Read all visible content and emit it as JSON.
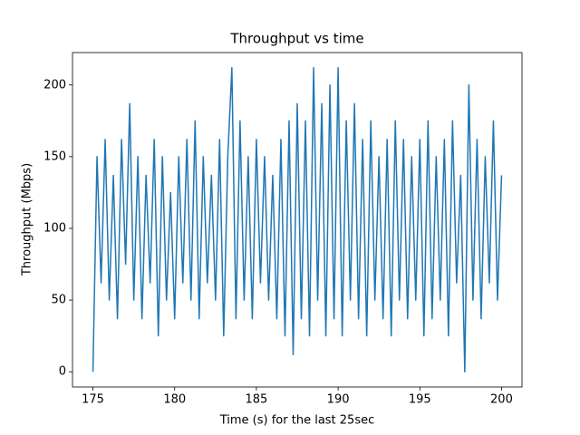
{
  "chart_data": {
    "type": "line",
    "title": "Throughput vs time",
    "x_label": "Time (s) for the last 25sec",
    "y_label": "Throughput (Mbps)",
    "xlim": [
      173.75,
      201.25
    ],
    "ylim": [
      -10.6,
      222.6
    ],
    "xticks": [
      175,
      180,
      185,
      190,
      195,
      200
    ],
    "yticks": [
      0,
      50,
      100,
      150,
      200
    ],
    "grid": false,
    "x": [
      175,
      175.25,
      175.5,
      175.75,
      176,
      176.25,
      176.5,
      176.75,
      177,
      177.25,
      177.5,
      177.75,
      178,
      178.25,
      178.5,
      178.75,
      179,
      179.25,
      179.5,
      179.75,
      180,
      180.25,
      180.5,
      180.75,
      181,
      181.25,
      181.5,
      181.75,
      182,
      182.25,
      182.5,
      182.75,
      183,
      183.25,
      183.5,
      183.75,
      184,
      184.25,
      184.5,
      184.75,
      185,
      185.25,
      185.5,
      185.75,
      186,
      186.25,
      186.5,
      186.75,
      187,
      187.25,
      187.5,
      187.75,
      188,
      188.25,
      188.5,
      188.75,
      189,
      189.25,
      189.5,
      189.75,
      190,
      190.25,
      190.5,
      190.75,
      191,
      191.25,
      191.5,
      191.75,
      192,
      192.25,
      192.5,
      192.75,
      193,
      193.25,
      193.5,
      193.75,
      194,
      194.25,
      194.5,
      194.75,
      195,
      195.25,
      195.5,
      195.75,
      196,
      196.25,
      196.5,
      196.75,
      197,
      197.25,
      197.5,
      197.75,
      198,
      198.25,
      198.5,
      198.75,
      199,
      199.25,
      199.5,
      199.75,
      200
    ],
    "series": [
      {
        "name": "Throughput",
        "color": "#1f77b4",
        "values": [
          0,
          150,
          62,
          162,
          50,
          137,
          37,
          162,
          75,
          187,
          50,
          150,
          37,
          137,
          62,
          162,
          25,
          150,
          50,
          125,
          37,
          150,
          62,
          162,
          50,
          175,
          37,
          150,
          62,
          137,
          50,
          162,
          25,
          150,
          212,
          37,
          175,
          50,
          150,
          37,
          162,
          62,
          150,
          50,
          137,
          37,
          162,
          25,
          175,
          12,
          187,
          37,
          175,
          25,
          212,
          50,
          187,
          25,
          200,
          37,
          212,
          25,
          175,
          50,
          187,
          37,
          162,
          25,
          175,
          50,
          150,
          37,
          162,
          25,
          175,
          50,
          162,
          37,
          150,
          50,
          162,
          25,
          175,
          37,
          150,
          50,
          162,
          25,
          175,
          62,
          137,
          0,
          200,
          50,
          162,
          37,
          150,
          62,
          175,
          50,
          137
        ]
      }
    ]
  }
}
